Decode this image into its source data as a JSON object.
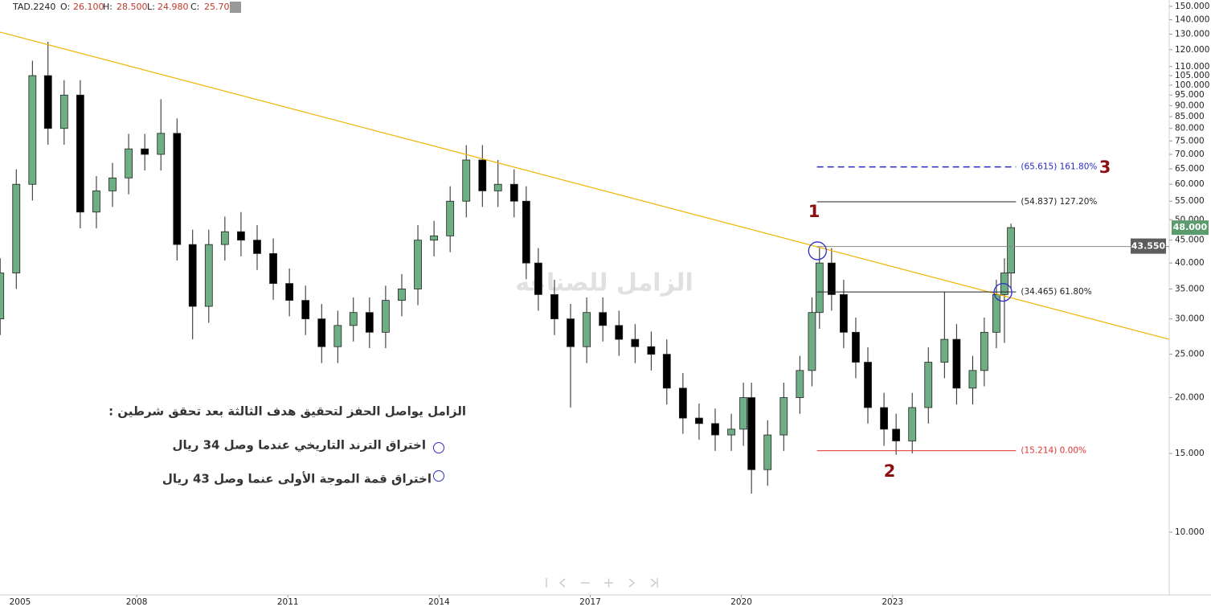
{
  "chart_data": {
    "type": "candlestick",
    "header": {
      "symbol": "TAD.2240",
      "fields": [
        {
          "key": "O:",
          "value": "26.100"
        },
        {
          "key": "H:",
          "value": "28.500"
        },
        {
          "key": "L:",
          "value": "24.980"
        },
        {
          "key": "C:",
          "value": "25.700"
        }
      ]
    },
    "log_scale": true,
    "grid": false,
    "xlim": [
      2005.287,
      2028.49
    ],
    "xticks": [
      2005,
      2008,
      2011,
      2014,
      2017,
      2020,
      2023
    ],
    "ylim": [
      7.24,
      155
    ],
    "yticks": [
      {
        "value": 150,
        "label": "150.000"
      },
      {
        "value": 140,
        "label": "140.000"
      },
      {
        "value": 130,
        "label": "130.000"
      },
      {
        "value": 120,
        "label": "120.000"
      },
      {
        "value": 110,
        "label": "110.000"
      },
      {
        "value": 105,
        "label": "105.000"
      },
      {
        "value": 100,
        "label": "100.000"
      },
      {
        "value": 95,
        "label": "95.000"
      },
      {
        "value": 90,
        "label": "90.000"
      },
      {
        "value": 85,
        "label": "85.000"
      },
      {
        "value": 80,
        "label": "80.000"
      },
      {
        "value": 75,
        "label": "75.000"
      },
      {
        "value": 70,
        "label": "70.000"
      },
      {
        "value": 65,
        "label": "65.000"
      },
      {
        "value": 60,
        "label": "60.000"
      },
      {
        "value": 55,
        "label": "55.000"
      },
      {
        "value": 50,
        "label": "50.000"
      },
      {
        "value": 45,
        "label": "45.000"
      },
      {
        "value": 40,
        "label": "40.000"
      },
      {
        "value": 35,
        "label": "35.000"
      },
      {
        "value": 30,
        "label": "30.000"
      },
      {
        "value": 25,
        "label": "25.000"
      },
      {
        "value": 20,
        "label": "20.000"
      },
      {
        "value": 15,
        "label": "15.000"
      },
      {
        "value": 10,
        "label": "10.000"
      }
    ],
    "up_color": "#6fae84",
    "down_color": "#000000",
    "candles": {
      "x": [
        2005.29,
        2005.61,
        2005.93,
        2006.24,
        2006.56,
        2006.88,
        2007.2,
        2007.52,
        2007.84,
        2008.16,
        2008.48,
        2008.8,
        2009.11,
        2009.43,
        2009.75,
        2010.07,
        2010.39,
        2010.71,
        2011.03,
        2011.35,
        2011.67,
        2011.99,
        2012.3,
        2012.62,
        2012.94,
        2013.26,
        2013.58,
        2013.9,
        2014.22,
        2014.54,
        2014.86,
        2015.17,
        2015.49,
        2015.73,
        2015.97,
        2016.29,
        2016.61,
        2016.93,
        2017.25,
        2017.57,
        2017.89,
        2018.21,
        2018.52,
        2018.84,
        2019.16,
        2019.48,
        2019.8,
        2020.04,
        2020.2,
        2020.52,
        2020.84,
        2021.16,
        2021.4,
        2021.55,
        2021.79,
        2022.03,
        2022.27,
        2022.51,
        2022.83,
        2023.07,
        2023.39,
        2023.71,
        2024.03,
        2024.27,
        2024.59,
        2024.82,
        2025.06,
        2025.22,
        2025.35
      ],
      "open": [
        30,
        38,
        60,
        105,
        80,
        95,
        52,
        58,
        62,
        72,
        70,
        78,
        44,
        32,
        44,
        47,
        45,
        42,
        36,
        33,
        30,
        26,
        29,
        31,
        28,
        33,
        35,
        45,
        46,
        55,
        68,
        58,
        60,
        55,
        40,
        34,
        30,
        26,
        31,
        29,
        27,
        26,
        25,
        21,
        18,
        17.5,
        16.5,
        17,
        20,
        13.8,
        16.5,
        20,
        23,
        31,
        40,
        34,
        28,
        24,
        19,
        17,
        16,
        19,
        24,
        27,
        21,
        23,
        28,
        34,
        38
      ],
      "high": [
        41.0,
        64.8,
        113.4,
        125,
        102.6,
        102.6,
        62.6,
        67.0,
        77.8,
        77.8,
        93,
        84.2,
        47.5,
        47.5,
        50.8,
        52,
        48.6,
        45.4,
        38.9,
        35.6,
        32.4,
        31.3,
        33.5,
        33.5,
        35.6,
        37.8,
        48.6,
        49.7,
        59.4,
        73.4,
        73.4,
        68,
        64.8,
        59.4,
        43.2,
        36.7,
        32.4,
        33.5,
        33.5,
        31.3,
        29.2,
        28.1,
        27.0,
        22.7,
        19.4,
        18.9,
        18.4,
        21.6,
        21.6,
        17.8,
        21.6,
        24.8,
        33.5,
        43.2,
        43.2,
        36.7,
        30.2,
        25.9,
        20.5,
        18.4,
        20.5,
        25.9,
        34.5,
        29.2,
        24.8,
        30.2,
        36.7,
        41.0,
        49
      ],
      "low": [
        27.6,
        35.0,
        55.2,
        73.6,
        73.6,
        47.8,
        47.8,
        53.4,
        57.0,
        64.4,
        64.4,
        40.5,
        27,
        29.4,
        40.5,
        41.4,
        38.6,
        33.1,
        30.4,
        27.6,
        23.9,
        23.9,
        26.7,
        25.8,
        25.8,
        30.4,
        32.2,
        41.4,
        42.3,
        50.6,
        53.4,
        53.4,
        50.6,
        36.8,
        31.3,
        27.6,
        19,
        23.9,
        26.7,
        24.8,
        23.9,
        23.0,
        19.3,
        16.6,
        16.1,
        15.2,
        15.2,
        15.6,
        12.2,
        12.7,
        15.2,
        18.4,
        21.2,
        28.5,
        31.3,
        25.8,
        22.1,
        17.5,
        15.6,
        14.9,
        15.0,
        17.5,
        22.1,
        19.3,
        19.3,
        21.2,
        25.8,
        26.5,
        35
      ],
      "close": [
        38,
        60,
        105,
        80,
        95,
        52,
        58,
        62,
        72,
        70,
        78,
        44,
        32,
        44,
        47,
        45,
        42,
        36,
        33,
        30,
        26,
        29,
        31,
        28,
        33,
        35,
        45,
        46,
        55,
        68,
        58,
        60,
        55,
        40,
        34,
        30,
        26,
        31,
        29,
        27,
        26,
        25,
        21,
        18,
        17.5,
        16.5,
        17,
        20,
        13.8,
        16.5,
        20,
        23,
        31,
        40,
        34,
        28,
        24,
        19,
        17,
        16,
        19,
        24,
        27,
        21,
        23,
        28,
        34,
        38,
        48
      ]
    },
    "trendline": {
      "x": [
        2005.29,
        2028.49
      ],
      "values": [
        131.4,
        27.0
      ],
      "color": "#f0b400"
    },
    "fib_x": [
      2021.5,
      2025.45
    ],
    "fib_levels": [
      {
        "price": 65.615,
        "label": "(65.615) 161.80%",
        "color": "#2929c9",
        "dashed": true
      },
      {
        "price": 54.837,
        "label": "(54.837) 127.20%",
        "color": "#222222",
        "dashed": false
      },
      {
        "price": 34.465,
        "label": "(34.465) 61.80%",
        "color": "#222222",
        "dashed": false
      },
      {
        "price": 15.214,
        "label": "(15.214) 0.00%",
        "color": "#e03030",
        "dashed": false
      }
    ],
    "price_tags": [
      {
        "value": 43.55,
        "label": "43.550",
        "color": "#5d5d5d",
        "line_from": 2021.5
      },
      {
        "value": 48,
        "label": "48.000",
        "color": "#5b9b6e"
      }
    ],
    "circles": {
      "x": [
        2021.51,
        2025.19
      ],
      "values": [
        42.6,
        34.4
      ],
      "color": "#2d2dc8"
    },
    "wave_labels": [
      "1",
      "2",
      "3"
    ],
    "watermark": "الزامل للصناعه",
    "notes": {
      "heading": "الزامل يواصل الحفز لتحقيق هدف الثالثة بعد تحقق شرطين :",
      "items": [
        "اختراق الترند التاريخي عندما وصل 34 ريال",
        "اختراق قمة الموجة الأولى عنما وصل 43 ريال"
      ]
    }
  }
}
